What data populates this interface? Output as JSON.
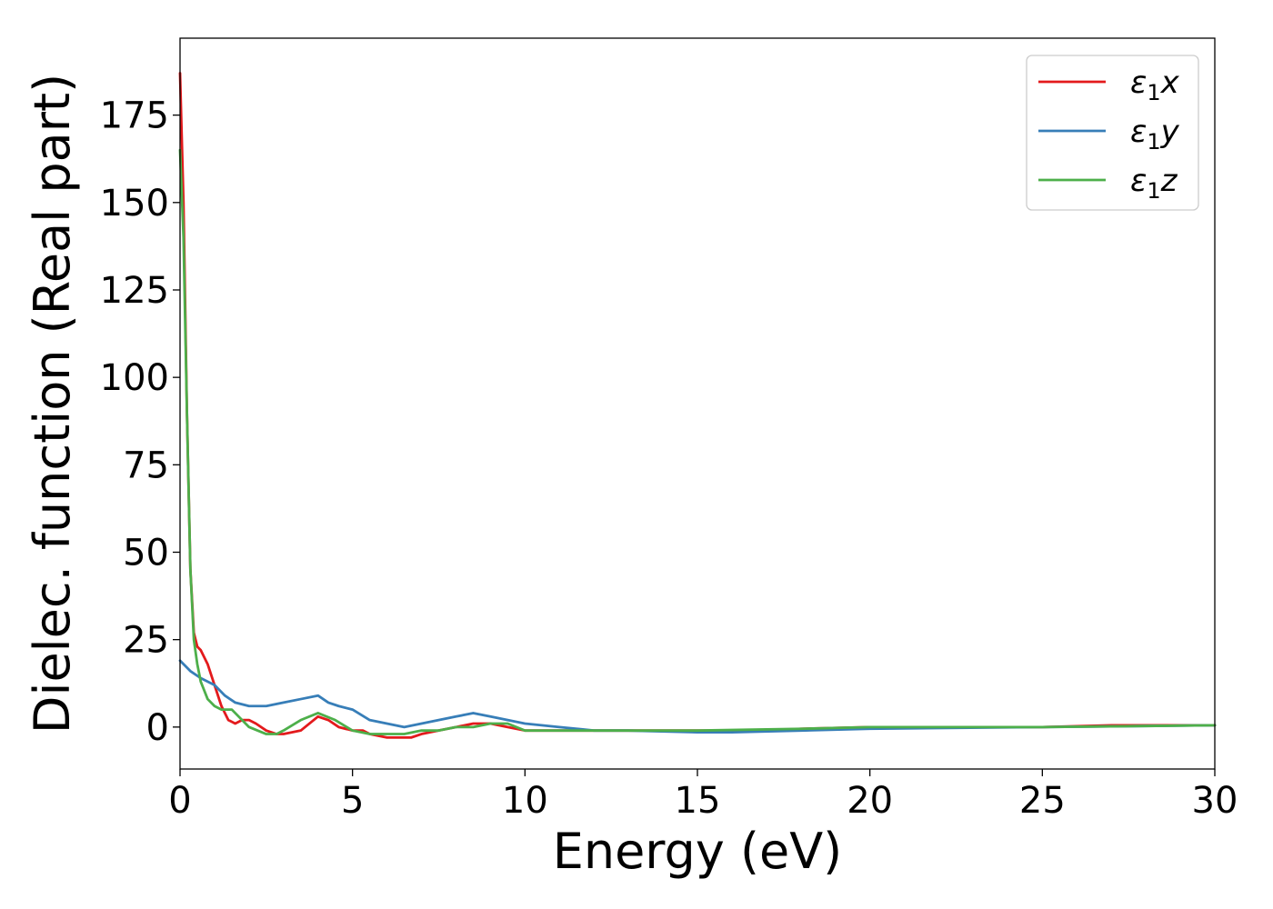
{
  "chart_data": {
    "type": "line",
    "title": "",
    "xlabel": "Energy (eV)",
    "ylabel": "Dielec. function (Real part)",
    "xlim": [
      0,
      30
    ],
    "ylim": [
      -12,
      197
    ],
    "xticks": [
      0,
      5,
      10,
      15,
      20,
      25,
      30
    ],
    "yticks": [
      0,
      25,
      50,
      75,
      100,
      125,
      150,
      175
    ],
    "grid": false,
    "legend_position": "top-right",
    "series": [
      {
        "name": "ε₁x",
        "legend_main": "ε",
        "legend_sub": "1",
        "legend_tail": "x",
        "color": "#e31a1c",
        "x": [
          0,
          0.1,
          0.2,
          0.3,
          0.4,
          0.5,
          0.6,
          0.8,
          1.0,
          1.2,
          1.4,
          1.6,
          1.8,
          2.0,
          2.2,
          2.5,
          2.8,
          3.0,
          3.5,
          4.0,
          4.3,
          4.6,
          5.0,
          5.3,
          5.5,
          6.0,
          6.3,
          6.7,
          7.0,
          7.5,
          8.0,
          8.5,
          9.0,
          9.5,
          10.0,
          10.5,
          11.0,
          11.5,
          12.0,
          13.0,
          14.0,
          15.0,
          16.0,
          17.0,
          18.0,
          20.0,
          22.0,
          25.0,
          27.0,
          30.0
        ],
        "values": [
          187,
          150,
          90,
          45,
          27,
          23,
          22,
          18,
          12,
          6,
          2,
          1,
          2,
          2,
          1,
          -1,
          -2,
          -2,
          -1,
          3,
          2,
          0,
          -1,
          -1,
          -2,
          -3,
          -3,
          -3,
          -2,
          -1,
          0,
          1,
          1,
          0,
          -1,
          -1,
          -1,
          -1,
          -1,
          -1,
          -1,
          -1,
          -1,
          -1,
          -0.5,
          0,
          0,
          0,
          0.5,
          0.5
        ]
      },
      {
        "name": "ε₁y",
        "legend_main": "ε",
        "legend_sub": "1",
        "legend_tail": "y",
        "color": "#377eb8",
        "x": [
          0,
          0.3,
          0.6,
          1.0,
          1.3,
          1.6,
          2.0,
          2.5,
          3.0,
          3.5,
          4.0,
          4.3,
          4.6,
          5.0,
          5.5,
          6.0,
          6.5,
          7.0,
          7.5,
          8.0,
          8.5,
          9.0,
          9.5,
          10.0,
          11.0,
          12.0,
          13.0,
          15.0,
          16.0,
          18.0,
          20.0,
          25.0,
          30.0
        ],
        "values": [
          19,
          16,
          14,
          12,
          9,
          7,
          6,
          6,
          7,
          8,
          9,
          7,
          6,
          5,
          2,
          1,
          0,
          1,
          2,
          3,
          4,
          3,
          2,
          1,
          0,
          -1,
          -1,
          -1.5,
          -1.5,
          -1,
          -0.5,
          0,
          0.5
        ]
      },
      {
        "name": "ε₁z",
        "legend_main": "ε",
        "legend_sub": "1",
        "legend_tail": "z",
        "color": "#4daf4a",
        "x": [
          0,
          0.1,
          0.2,
          0.3,
          0.4,
          0.5,
          0.6,
          0.8,
          1.0,
          1.2,
          1.4,
          1.5,
          1.7,
          2.0,
          2.5,
          2.8,
          3.0,
          3.5,
          4.0,
          4.5,
          5.0,
          5.5,
          6.0,
          6.5,
          7.0,
          7.5,
          8.0,
          8.5,
          9.0,
          9.5,
          10.0,
          10.5,
          11.0,
          12.0,
          13.0,
          15.0,
          18.0,
          20.0,
          25.0,
          30.0
        ],
        "values": [
          165,
          140,
          90,
          45,
          25,
          18,
          13,
          8,
          6,
          5,
          5,
          5,
          3,
          0,
          -2,
          -2,
          -1,
          2,
          4,
          2,
          -1,
          -2,
          -2,
          -2,
          -1,
          -1,
          0,
          0,
          1,
          1,
          -1,
          -1,
          -1,
          -1,
          -1,
          -1,
          -0.5,
          0,
          0,
          0.5
        ]
      }
    ]
  }
}
